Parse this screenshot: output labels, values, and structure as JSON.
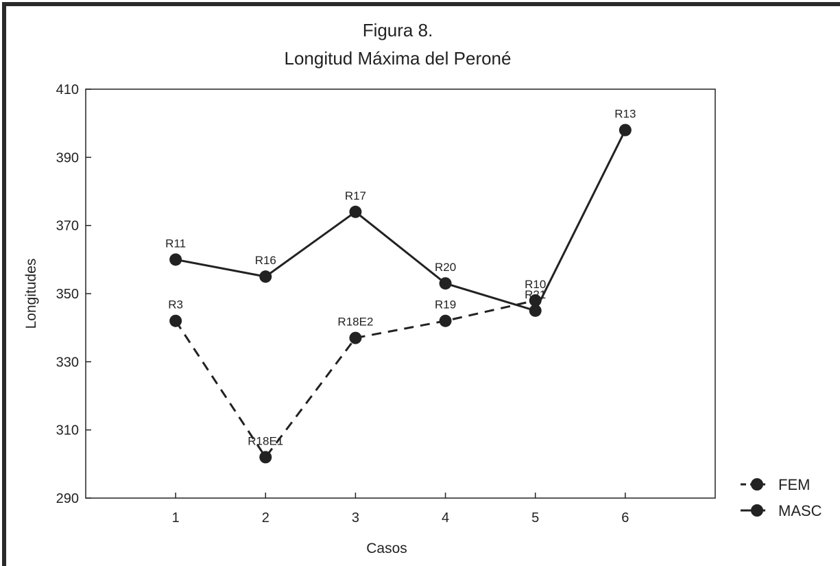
{
  "chart_data": {
    "type": "line",
    "title": "Figura 8.",
    "subtitle": "Longitud Máxima del Peroné",
    "xlabel": "Casos",
    "ylabel": "Longitudes",
    "xlim": [
      0,
      7
    ],
    "ylim": [
      290,
      410
    ],
    "xticks": [
      1,
      2,
      3,
      4,
      5,
      6
    ],
    "yticks": [
      290,
      310,
      330,
      350,
      370,
      390,
      410
    ],
    "grid": false,
    "legend_position": "bottom-right",
    "series": [
      {
        "name": "FEM",
        "line_style": "dashed",
        "points": [
          {
            "x": 1,
            "y": 342,
            "label": "R3"
          },
          {
            "x": 2,
            "y": 302,
            "label": "R18E1"
          },
          {
            "x": 3,
            "y": 337,
            "label": "R18E2"
          },
          {
            "x": 4,
            "y": 342,
            "label": "R19"
          },
          {
            "x": 5,
            "y": 348,
            "label": "R10"
          }
        ]
      },
      {
        "name": "MASC",
        "line_style": "solid",
        "points": [
          {
            "x": 1,
            "y": 360,
            "label": "R11"
          },
          {
            "x": 2,
            "y": 355,
            "label": "R16"
          },
          {
            "x": 3,
            "y": 374,
            "label": "R17"
          },
          {
            "x": 4,
            "y": 353,
            "label": "R20"
          },
          {
            "x": 5,
            "y": 345,
            "label": "R21"
          },
          {
            "x": 6,
            "y": 398,
            "label": "R13"
          }
        ]
      }
    ],
    "colors": {
      "marks": "#222222",
      "border": "#333333"
    }
  }
}
